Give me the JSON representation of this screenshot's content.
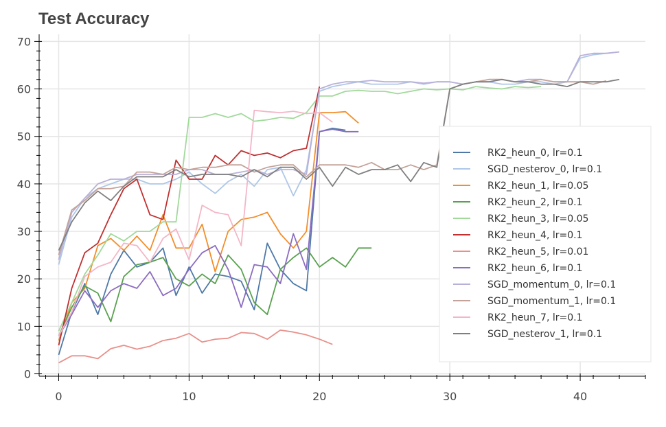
{
  "chart_data": {
    "type": "line",
    "title": "Test Accuracy",
    "xlabel": "",
    "ylabel": "",
    "xlim": [
      -1.5,
      45
    ],
    "ylim": [
      -0.5,
      71.5
    ],
    "xticks": [
      0,
      10,
      20,
      30,
      40
    ],
    "yticks": [
      0,
      10,
      20,
      30,
      40,
      50,
      60,
      70
    ],
    "grid": true,
    "legend_position": "right-center",
    "series": [
      {
        "name": "RK2_heun_0, lr=0.1",
        "color": "#4e79a7",
        "x": [
          0,
          1,
          2,
          3,
          4,
          5,
          6,
          7,
          8,
          9,
          10,
          11,
          12,
          13,
          14,
          15,
          16,
          17,
          18,
          19,
          20,
          21,
          22
        ],
        "y": [
          4,
          13,
          19,
          12.5,
          21,
          26,
          22.5,
          23.5,
          26.5,
          16.5,
          22.5,
          17,
          21,
          20.5,
          19.5,
          13.5,
          27.5,
          22,
          19,
          17.5,
          51,
          51.7,
          51.3
        ]
      },
      {
        "name": "SGD_nesterov_0, lr=0.1",
        "color": "#aec7e8",
        "x": [
          0,
          1,
          2,
          3,
          4,
          5,
          6,
          7,
          8,
          9,
          10,
          11,
          12,
          13,
          14,
          15,
          16,
          17,
          18,
          19,
          20,
          21,
          22,
          23,
          24,
          25,
          26,
          27,
          28,
          29,
          30,
          31,
          32,
          33,
          34,
          35,
          36,
          37,
          38,
          39,
          40,
          41,
          42,
          43
        ],
        "y": [
          23,
          33,
          37,
          39,
          40,
          41,
          41,
          40,
          40,
          41,
          42.5,
          40,
          38,
          40.5,
          42,
          39.5,
          43,
          43.5,
          37.5,
          43,
          59.5,
          60.5,
          61,
          61.5,
          61,
          61,
          61,
          61.5,
          61,
          61.5,
          61.5,
          61,
          61.5,
          61.5,
          61,
          61,
          61.5,
          61.5,
          61,
          61.5,
          66.5,
          67.2,
          67.5,
          67.8
        ]
      },
      {
        "name": "RK2_heun_1, lr=0.05",
        "color": "#f28e2b",
        "x": [
          0,
          1,
          2,
          3,
          4,
          5,
          6,
          7,
          8,
          9,
          10,
          11,
          12,
          13,
          14,
          15,
          16,
          17,
          18,
          19,
          20,
          21,
          22,
          23
        ],
        "y": [
          7,
          15,
          18,
          27,
          28.5,
          26,
          29,
          26,
          33.5,
          26.5,
          26.5,
          31.5,
          21.5,
          30,
          32.5,
          33,
          34,
          29.5,
          26.5,
          30,
          55,
          55,
          55.2,
          52.8
        ]
      },
      {
        "name": "RK2_heun_2, lr=0.1",
        "color": "#59a14f",
        "x": [
          0,
          1,
          2,
          3,
          4,
          5,
          6,
          7,
          8,
          9,
          10,
          11,
          12,
          13,
          14,
          15,
          16,
          17,
          18,
          19,
          20,
          21,
          22,
          23,
          24
        ],
        "y": [
          8,
          14,
          18.5,
          17,
          11,
          20.5,
          23,
          23.5,
          24.5,
          20,
          18.5,
          21,
          19,
          25,
          22,
          15,
          12.5,
          22,
          24.5,
          26.5,
          22.5,
          24.5,
          22.5,
          26.5,
          26.5
        ]
      },
      {
        "name": "RK2_heun_3, lr=0.05",
        "color": "#a1d99b",
        "x": [
          0,
          1,
          2,
          3,
          4,
          5,
          6,
          7,
          8,
          9,
          10,
          11,
          12,
          13,
          14,
          15,
          16,
          17,
          18,
          19,
          20,
          21,
          22,
          23,
          24,
          25,
          26,
          27,
          28,
          29,
          30,
          31,
          32,
          33,
          34,
          35,
          36,
          37
        ],
        "y": [
          9,
          15,
          21,
          25,
          29.5,
          28,
          30,
          30,
          32,
          32,
          54,
          54,
          54.8,
          54,
          54.8,
          53.2,
          53.5,
          54,
          53.8,
          55,
          58.5,
          58.5,
          59.5,
          59.7,
          59.5,
          59.5,
          59,
          59.5,
          60,
          59.8,
          60,
          59.8,
          60.5,
          60.2,
          60,
          60.5,
          60.3,
          60.5
        ]
      },
      {
        "name": "RK2_heun_4, lr=0.1",
        "color": "#c03030",
        "x": [
          0,
          1,
          2,
          3,
          4,
          5,
          6,
          7,
          8,
          9,
          10,
          11,
          12,
          13,
          14,
          15,
          16,
          17,
          18,
          19,
          20
        ],
        "y": [
          6,
          18,
          25.5,
          27.5,
          33.5,
          39,
          41,
          33.5,
          32.5,
          45,
          41,
          41,
          46,
          44,
          47,
          46,
          46.5,
          45.5,
          47,
          47.5,
          60.5
        ]
      },
      {
        "name": "RK2_heun_5, lr=0.01",
        "color": "#e8908a",
        "x": [
          0,
          1,
          2,
          3,
          4,
          5,
          6,
          7,
          8,
          9,
          10,
          11,
          12,
          13,
          14,
          15,
          16,
          17,
          18,
          19,
          20,
          21
        ],
        "y": [
          2.3,
          3.8,
          3.8,
          3.2,
          5.3,
          6,
          5.2,
          5.8,
          7,
          7.5,
          8.5,
          6.7,
          7.3,
          7.5,
          8.7,
          8.5,
          7.3,
          9.2,
          8.8,
          8.2,
          7.3,
          6.2
        ]
      },
      {
        "name": "RK2_heun_6, lr=0.1",
        "color": "#8b6cc0",
        "x": [
          0,
          1,
          2,
          3,
          4,
          5,
          6,
          7,
          8,
          9,
          10,
          11,
          12,
          13,
          14,
          15,
          16,
          17,
          18,
          19,
          20,
          21,
          22,
          23
        ],
        "y": [
          8,
          12.5,
          17.5,
          14,
          17.5,
          19,
          18,
          21.5,
          16.5,
          18,
          22,
          25.5,
          27,
          22,
          14,
          23,
          22.5,
          19,
          29.5,
          22,
          51,
          51.5,
          51,
          51
        ]
      },
      {
        "name": "SGD_momentum_0, lr=0.1",
        "color": "#b9b0d8",
        "x": [
          0,
          1,
          2,
          3,
          4,
          5,
          6,
          7,
          8,
          9,
          10,
          11,
          12,
          13,
          14,
          15,
          16,
          17,
          18,
          19,
          20,
          21,
          22,
          23,
          24,
          25,
          26,
          27,
          28,
          29,
          30,
          31,
          32,
          33,
          34,
          35,
          36,
          37,
          38,
          39,
          40,
          41,
          42,
          43
        ],
        "y": [
          24,
          34,
          37,
          40,
          41,
          41,
          42,
          42,
          42,
          42,
          43,
          43,
          42,
          42,
          42.5,
          43,
          42,
          43,
          43,
          42,
          60,
          61,
          61.5,
          61.5,
          61.8,
          61.5,
          61.5,
          61.5,
          61.2,
          61.5,
          61.5,
          61,
          61.5,
          61.5,
          62,
          61.5,
          62,
          62,
          61.5,
          61.5,
          67,
          67.5,
          67.5,
          67.8
        ]
      },
      {
        "name": "SGD_momentum_1, lr=0.1",
        "color": "#c4a39a",
        "x": [
          0,
          1,
          2,
          3,
          4,
          5,
          6,
          7,
          8,
          9,
          10,
          11,
          12,
          13,
          14,
          15,
          16,
          17,
          18,
          19,
          20,
          21,
          22,
          23,
          24,
          25,
          26,
          27,
          28,
          29,
          30,
          31,
          32,
          33,
          34,
          35,
          36,
          37,
          38,
          39,
          40,
          41,
          42
        ],
        "y": [
          25,
          34.5,
          36.5,
          39,
          39,
          39.5,
          42.5,
          42.5,
          42,
          43.5,
          43,
          43.5,
          43.5,
          44,
          44,
          42.5,
          43.5,
          44,
          44,
          41.5,
          44,
          44,
          44,
          43.5,
          44.5,
          43,
          43,
          44,
          43,
          44,
          60,
          61,
          61.5,
          62,
          62,
          61.5,
          61.5,
          62,
          61.5,
          61.5,
          61.5,
          61,
          61.7
        ]
      },
      {
        "name": "RK2_heun_7, lr=0.1",
        "color": "#f4b6c7",
        "x": [
          0,
          1,
          2,
          3,
          4,
          5,
          6,
          7,
          8,
          9,
          10,
          11,
          12,
          13,
          14,
          15,
          16,
          17,
          18,
          19,
          20,
          21
        ],
        "y": [
          8,
          13,
          20.5,
          22.5,
          23.5,
          27.5,
          27,
          23.5,
          28.5,
          30.5,
          24,
          35.5,
          34,
          33.5,
          27,
          55.5,
          55.2,
          55,
          55.3,
          54.8,
          55,
          53
        ]
      },
      {
        "name": "SGD_nesterov_1, lr=0.1",
        "color": "#7f7f7f",
        "x": [
          0,
          1,
          2,
          3,
          4,
          5,
          6,
          7,
          8,
          9,
          10,
          11,
          12,
          13,
          14,
          15,
          16,
          17,
          18,
          19,
          20,
          21,
          22,
          23,
          24,
          25,
          26,
          27,
          28,
          29,
          30,
          31,
          32,
          33,
          34,
          35,
          36,
          37,
          38,
          39,
          40,
          41,
          42,
          43
        ],
        "y": [
          26,
          32,
          36,
          38.5,
          36.5,
          39.5,
          41.5,
          41.5,
          41.5,
          43,
          41.5,
          42,
          42,
          42,
          41.5,
          43,
          41.5,
          43.5,
          43.5,
          41,
          43.5,
          39.5,
          43.5,
          42,
          43,
          43,
          44,
          40.5,
          44.5,
          43.5,
          60,
          61,
          61.5,
          61.5,
          62,
          61.5,
          61.5,
          61,
          61,
          60.5,
          61.5,
          61.5,
          61.5,
          62
        ]
      }
    ]
  }
}
